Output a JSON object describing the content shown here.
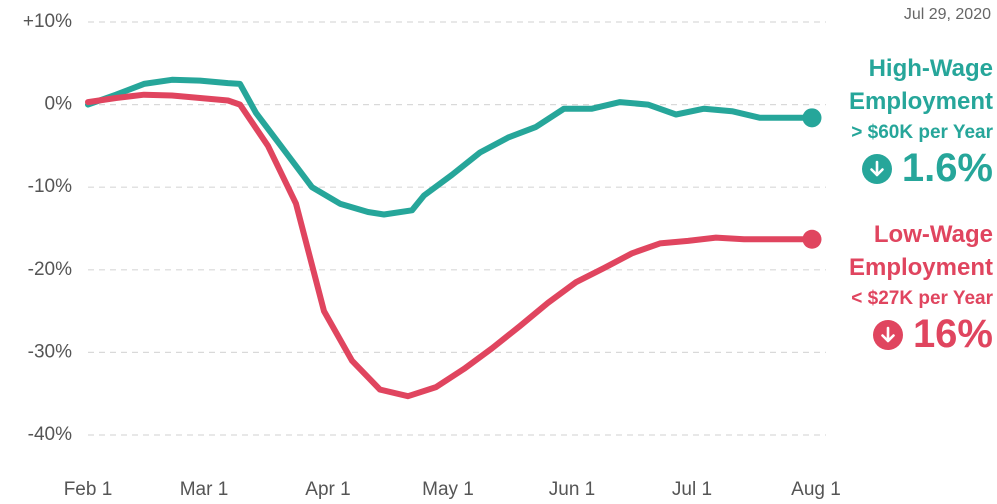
{
  "chart_data": {
    "type": "line",
    "date": "Jul 29, 2020",
    "x": [
      0,
      7,
      14,
      21,
      28,
      35,
      38,
      42,
      45,
      49,
      52,
      56,
      59,
      63,
      66,
      70,
      73,
      74,
      80,
      81,
      84,
      87,
      91,
      94,
      98,
      101,
      105,
      108,
      112,
      115,
      119,
      122,
      126,
      129,
      133,
      136,
      140,
      143,
      147,
      150,
      154,
      157,
      161,
      164,
      168,
      171,
      175,
      181
    ],
    "series": [
      {
        "name": "High-Wage Employment",
        "subtitle": "> $60K per Year",
        "change": "1.6%",
        "color": "#26a69a",
        "values": [
          0,
          1.2,
          2.5,
          3.0,
          2.9,
          2.6,
          2.5,
          -1,
          null,
          -5.5,
          null,
          -10,
          null,
          -12,
          null,
          -13,
          null,
          -13.3,
          null,
          -12.8,
          -11,
          null,
          -8.5,
          null,
          -5.8,
          null,
          -4,
          null,
          -2.7,
          null,
          -0.5,
          null,
          -0.5,
          null,
          0.3,
          null,
          0,
          null,
          -1.2,
          null,
          -0.5,
          null,
          -0.8,
          null,
          -1.6,
          null,
          -1.6,
          -1.6
        ]
      },
      {
        "name": "Low-Wage Employment",
        "subtitle": "< $27K per Year",
        "change": "16%",
        "color": "#e0455f",
        "values": [
          0.3,
          0.8,
          1.2,
          1.1,
          0.8,
          0.5,
          0,
          null,
          -5,
          null,
          -12,
          null,
          -25,
          null,
          -31,
          null,
          -34.5,
          null,
          -35.3,
          null,
          null,
          -34.2,
          null,
          -32,
          null,
          -29.5,
          null,
          -26.8,
          null,
          -24,
          null,
          -21.5,
          null,
          -19.8,
          null,
          -18,
          null,
          -16.8,
          null,
          -16.5,
          null,
          -16.1,
          null,
          -16.3,
          null,
          -16.3,
          null,
          -16.3
        ]
      }
    ],
    "xlim": [
      0,
      182
    ],
    "xticks": [
      {
        "value": 0,
        "label": "Feb 1"
      },
      {
        "value": 29,
        "label": "Mar 1"
      },
      {
        "value": 60,
        "label": "Apr 1"
      },
      {
        "value": 90,
        "label": "May 1"
      },
      {
        "value": 121,
        "label": "Jun 1"
      },
      {
        "value": 151,
        "label": "Jul 1"
      },
      {
        "value": 182,
        "label": "Aug 1"
      }
    ],
    "ylim": [
      -40,
      10
    ],
    "yticks": [
      {
        "value": 10,
        "label": "+10%"
      },
      {
        "value": 0,
        "label": "0%"
      },
      {
        "value": -10,
        "label": "-10%"
      },
      {
        "value": -20,
        "label": "-20%"
      },
      {
        "value": -30,
        "label": "-30%"
      },
      {
        "value": -40,
        "label": "-40%"
      }
    ],
    "grid": true
  }
}
